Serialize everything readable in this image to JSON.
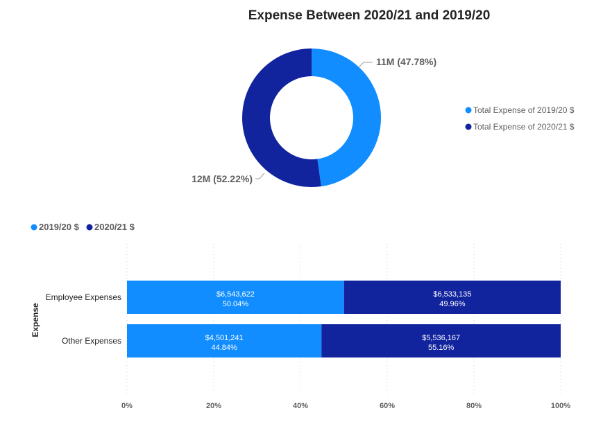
{
  "chart_data": [
    {
      "type": "pie",
      "variant": "donut",
      "title": "Expense Between 2020/21 and 2019/20",
      "slices": [
        {
          "name": "Total Expense of 2019/20 $",
          "value": 11,
          "percent": 47.78,
          "label": "11M (47.78%)",
          "color": "#118DFF"
        },
        {
          "name": "Total Expense of 2020/21 $",
          "value": 12,
          "percent": 52.22,
          "label": "12M (52.22%)",
          "color": "#12239E"
        }
      ],
      "legend_position": "right"
    },
    {
      "type": "bar",
      "orientation": "horizontal",
      "stacked": "100%",
      "categories": [
        "Employee Expenses",
        "Other Expenses"
      ],
      "ylabel": "Expense",
      "xlabel": "",
      "xlim": [
        0,
        100
      ],
      "x_ticks": [
        "0%",
        "20%",
        "40%",
        "60%",
        "80%",
        "100%"
      ],
      "legend_position": "top-left",
      "grid": true,
      "series": [
        {
          "name": "2019/20 $",
          "color": "#118DFF",
          "values": [
            6543622,
            4501241
          ],
          "percents": [
            50.04,
            44.84
          ],
          "value_labels": [
            "$6,543,622",
            "$4,501,241"
          ],
          "percent_labels": [
            "50.04%",
            "44.84%"
          ]
        },
        {
          "name": "2020/21 $",
          "color": "#12239E",
          "values": [
            6533135,
            5536167
          ],
          "percents": [
            49.96,
            55.16
          ],
          "value_labels": [
            "$6,533,135",
            "$5,536,167"
          ],
          "percent_labels": [
            "49.96%",
            "55.16%"
          ]
        }
      ]
    }
  ]
}
